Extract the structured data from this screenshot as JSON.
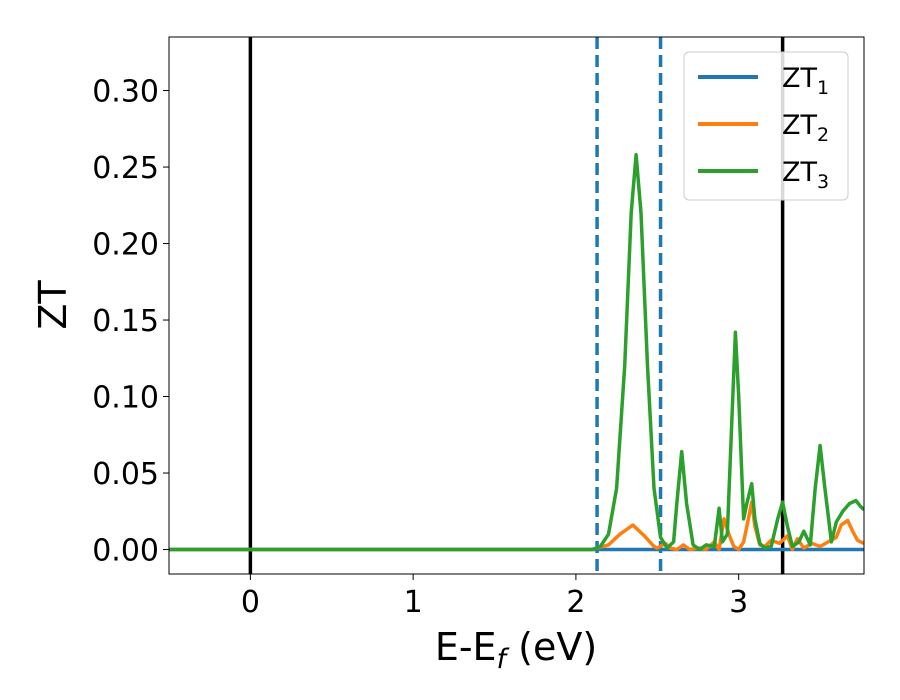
{
  "chart_data": {
    "type": "line",
    "xlabel": "E-E",
    "xlabel_subscript": "f",
    "xlabel_suffix": " (eV)",
    "ylabel": "ZT",
    "xlim": [
      -0.5,
      3.77
    ],
    "ylim": [
      -0.016,
      0.335
    ],
    "xticks": [
      0,
      1,
      2,
      3
    ],
    "xtick_labels": [
      "0",
      "1",
      "2",
      "3"
    ],
    "yticks": [
      0.0,
      0.05,
      0.1,
      0.15,
      0.2,
      0.25,
      0.3
    ],
    "ytick_labels": [
      "0.00",
      "0.05",
      "0.10",
      "0.15",
      "0.20",
      "0.25",
      "0.30"
    ],
    "grid": false,
    "legend_position": "top-right",
    "vertical_lines": [
      {
        "x": 0.0,
        "style": "solid",
        "color": "#000000"
      },
      {
        "x": 2.13,
        "style": "dashed",
        "color": "#1f77b4"
      },
      {
        "x": 2.52,
        "style": "dashed",
        "color": "#1f77b4"
      },
      {
        "x": 3.27,
        "style": "solid",
        "color": "#000000"
      }
    ],
    "series": [
      {
        "name": "ZT",
        "subscript": "1",
        "color": "#1f77b4",
        "x": [
          -0.5,
          2.13,
          3.77
        ],
        "y": [
          0.0,
          0.0,
          0.0
        ]
      },
      {
        "name": "ZT",
        "subscript": "2",
        "color": "#ff7f0e",
        "x": [
          -0.5,
          2.1,
          2.2,
          2.27,
          2.35,
          2.42,
          2.48,
          2.5,
          2.55,
          2.58,
          2.62,
          2.66,
          2.7,
          2.76,
          2.8,
          2.85,
          2.88,
          2.91,
          2.94,
          2.97,
          3.0,
          3.03,
          3.06,
          3.08,
          3.1,
          3.13,
          3.16,
          3.2,
          3.25,
          3.3,
          3.33,
          3.36,
          3.4,
          3.45,
          3.5,
          3.55,
          3.6,
          3.63,
          3.67,
          3.7,
          3.73,
          3.77
        ],
        "y": [
          0.0,
          0.0,
          0.003,
          0.01,
          0.016,
          0.009,
          0.002,
          0.001,
          0.004,
          0.001,
          0.0,
          0.003,
          0.0,
          0.001,
          0.0,
          0.005,
          0.0,
          0.02,
          0.01,
          0.002,
          0.0,
          0.005,
          0.02,
          0.031,
          0.015,
          0.003,
          0.002,
          0.006,
          0.004,
          0.009,
          0.0,
          0.007,
          0.001,
          0.004,
          0.002,
          0.005,
          0.008,
          0.016,
          0.019,
          0.012,
          0.006,
          0.004
        ]
      },
      {
        "name": "ZT",
        "subscript": "3",
        "color": "#2ca02c",
        "x": [
          -0.5,
          2.1,
          2.15,
          2.2,
          2.25,
          2.3,
          2.34,
          2.37,
          2.4,
          2.44,
          2.48,
          2.52,
          2.56,
          2.6,
          2.62,
          2.65,
          2.68,
          2.72,
          2.76,
          2.8,
          2.85,
          2.88,
          2.9,
          2.93,
          2.96,
          2.98,
          3.0,
          3.03,
          3.05,
          3.08,
          3.1,
          3.13,
          3.16,
          3.2,
          3.24,
          3.27,
          3.3,
          3.33,
          3.37,
          3.4,
          3.44,
          3.47,
          3.5,
          3.53,
          3.57,
          3.6,
          3.64,
          3.68,
          3.72,
          3.75,
          3.77
        ],
        "y": [
          0.0,
          0.0,
          0.002,
          0.01,
          0.04,
          0.12,
          0.22,
          0.258,
          0.22,
          0.12,
          0.04,
          0.008,
          0.001,
          0.005,
          0.03,
          0.064,
          0.03,
          0.003,
          0.0,
          0.003,
          0.002,
          0.027,
          0.005,
          0.01,
          0.09,
          0.142,
          0.1,
          0.02,
          0.03,
          0.043,
          0.02,
          0.004,
          0.001,
          0.002,
          0.02,
          0.031,
          0.015,
          0.002,
          0.005,
          0.012,
          0.003,
          0.04,
          0.068,
          0.04,
          0.005,
          0.018,
          0.025,
          0.03,
          0.032,
          0.028,
          0.026
        ]
      }
    ]
  }
}
